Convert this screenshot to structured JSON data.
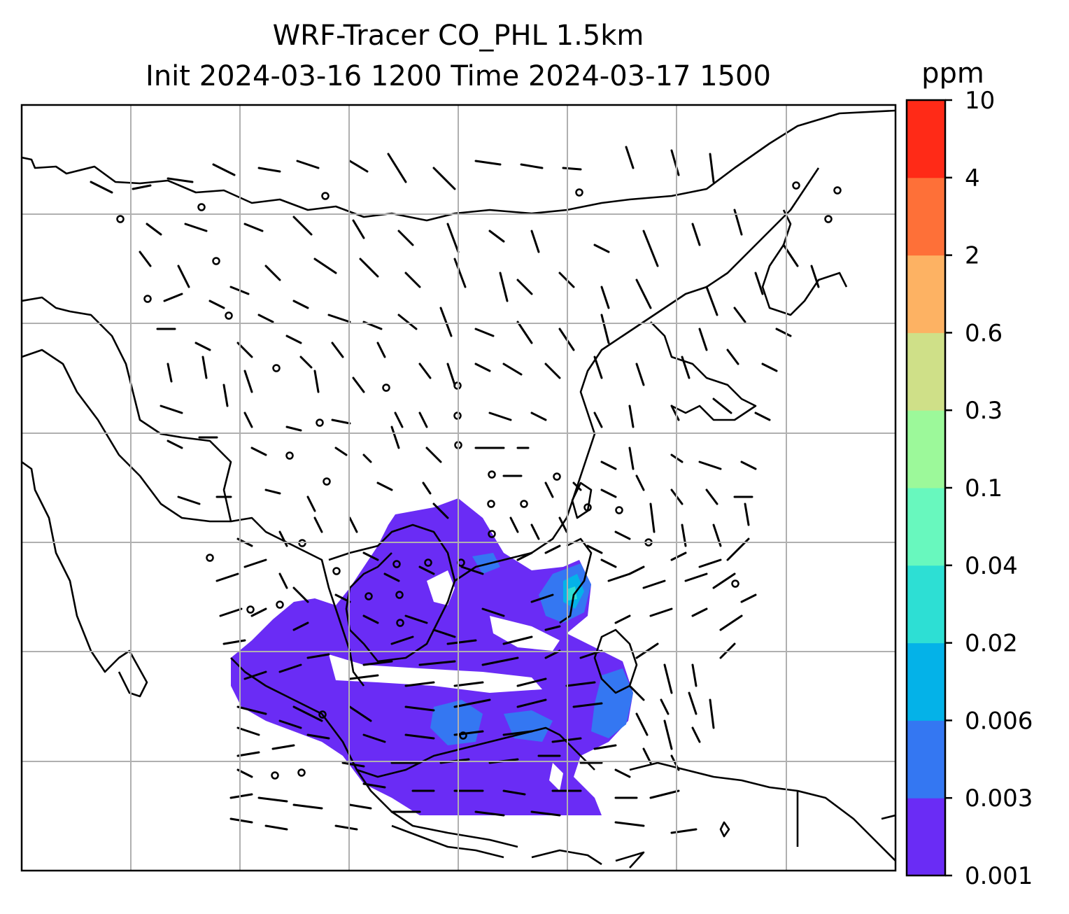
{
  "title_line1": "WRF-Tracer CO_PHL 1.5km",
  "title_line2": "Init 2024-03-16 1200 Time 2024-03-17 1500",
  "chart_data": {
    "type": "heatmap",
    "title": "WRF-Tracer CO_PHL 1.5km\nInit 2024-03-16 1200 Time 2024-03-17 1500",
    "variable": "CO_PHL tracer",
    "level": "1.5km",
    "init_time": "2024-03-16 1200",
    "valid_time": "2024-03-17 1500",
    "overlay": "wind barbs",
    "gridlines": true,
    "colorbar": {
      "label": "ppm",
      "position": "right",
      "ticks": [
        "0.001",
        "0.003",
        "0.006",
        "0.02",
        "0.04",
        "0.1",
        "0.3",
        "0.6",
        "2",
        "4",
        "10"
      ],
      "colors": [
        "#6a2cf5",
        "#3477f2",
        "#04b2e8",
        "#2ddfd4",
        "#68f8be",
        "#9cf99a",
        "#cfe088",
        "#fdb263",
        "#fe7038",
        "#ff2a17"
      ]
    },
    "plume_level_dominant": "0.001-0.003",
    "plume_max_level": "0.02-0.04"
  }
}
